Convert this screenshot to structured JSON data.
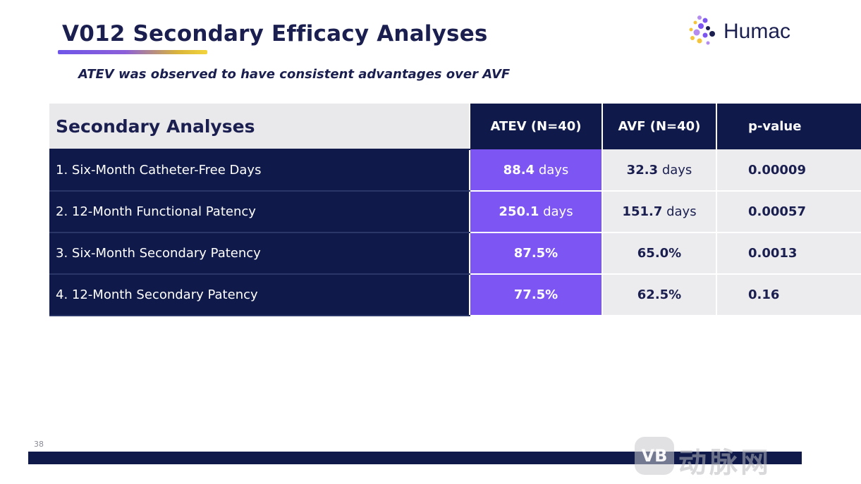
{
  "slide": {
    "title": "V012 Secondary Efficacy Analyses",
    "subtitle": "ATEV was observed to have consistent advantages over AVF",
    "page_number": "38"
  },
  "logo": {
    "text": "Humac",
    "icon": "dots-logo-icon",
    "dot_colors": [
      "#7c55f2",
      "#b48cf0",
      "#f3c43c",
      "#1a1f4f"
    ]
  },
  "table": {
    "header": {
      "title": "Secondary Analyses",
      "atev": "ATEV (N=40)",
      "avf": "AVF (N=40)",
      "pvalue": "p-value"
    },
    "rows": [
      {
        "label": "1. Six-Month Catheter-Free Days",
        "atev_num": "88.4",
        "atev_unit": " days",
        "avf_num": "32.3",
        "avf_unit": " days",
        "p": "0.00009"
      },
      {
        "label": "2. 12-Month Functional Patency",
        "atev_num": "250.1",
        "atev_unit": " days",
        "avf_num": "151.7",
        "avf_unit": " days",
        "p": "0.00057"
      },
      {
        "label": "3. Six-Month Secondary Patency",
        "atev_num": "87.5%",
        "atev_unit": "",
        "avf_num": "65.0%",
        "avf_unit": "",
        "p": "0.0013"
      },
      {
        "label": "4. 12-Month Secondary Patency",
        "atev_num": "77.5%",
        "atev_unit": "",
        "avf_num": "62.5%",
        "avf_unit": "",
        "p": "0.16"
      }
    ]
  },
  "watermark": {
    "badge": "VB",
    "text": "动脉网"
  },
  "colors": {
    "navy": "#0f1a4a",
    "purple": "#7c55f2",
    "light_gray": "#ececef"
  }
}
